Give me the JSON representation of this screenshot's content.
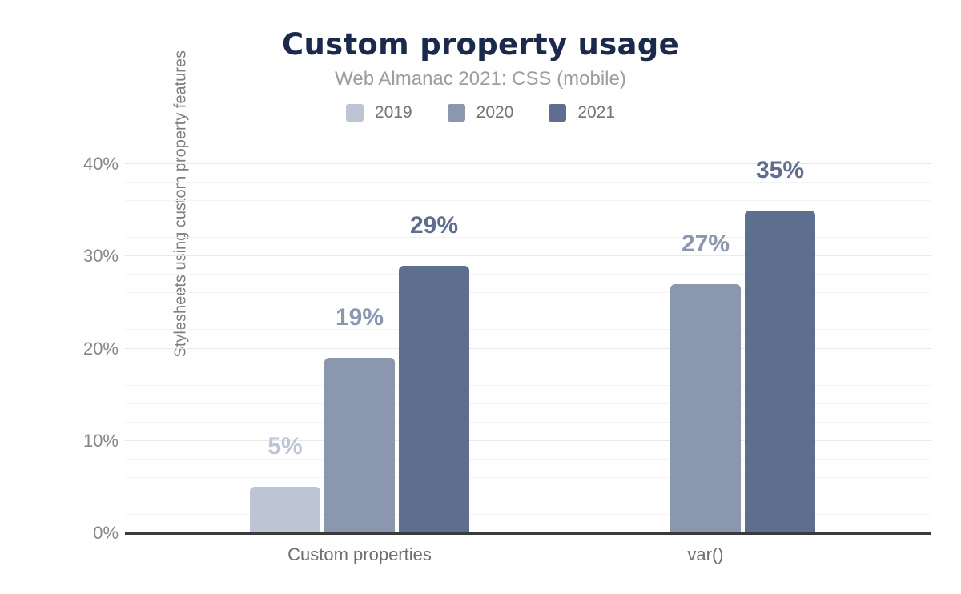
{
  "title": "Custom property usage",
  "subtitle": "Web Almanac 2021: CSS (mobile)",
  "colors": {
    "title": "#1b2a4a",
    "subtitle": "#999ea3",
    "baseline": "#3a3a3a"
  },
  "chart_data": {
    "type": "bar",
    "title": "Custom property usage",
    "subtitle": "Web Almanac 2021: CSS (mobile)",
    "categories": [
      "Custom properties",
      "var()"
    ],
    "series": [
      {
        "name": "2019",
        "color": "#bdc5d4",
        "values": [
          5,
          null
        ]
      },
      {
        "name": "2020",
        "color": "#8a97ae",
        "values": [
          19,
          27
        ]
      },
      {
        "name": "2021",
        "color": "#5d6e8e",
        "values": [
          29,
          35
        ]
      }
    ],
    "value_labels": [
      [
        "5%",
        "19%",
        "29%"
      ],
      [
        null,
        "27%",
        "35%"
      ]
    ],
    "xlabel": "",
    "ylabel": "Stylesheets using custom property features",
    "ylim": [
      0,
      40
    ],
    "yticks": [
      "0%",
      "10%",
      "20%",
      "30%",
      "40%"
    ],
    "ytick_values": [
      0,
      10,
      20,
      30,
      40
    ],
    "minor_grid_step": 2,
    "grid": true,
    "legend_position": "top-center"
  }
}
